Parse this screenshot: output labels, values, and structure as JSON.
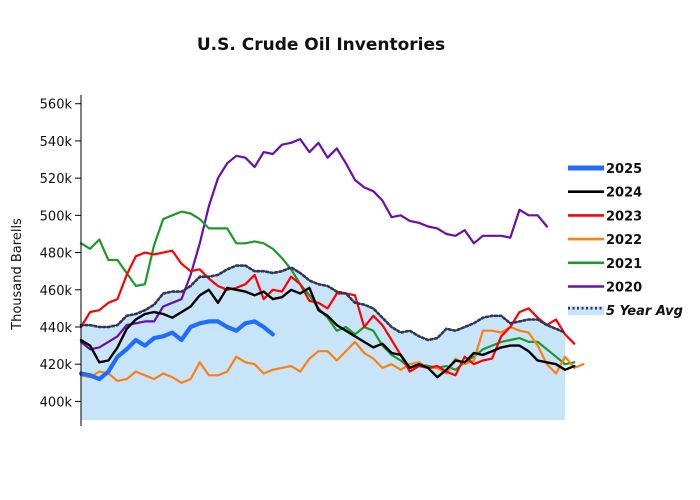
{
  "chart_data": {
    "type": "line",
    "title": "U.S. Crude Oil Inventories",
    "xlabel": "",
    "ylabel": "Thousand Barells",
    "ylim": [
      390,
      562
    ],
    "yticks": [
      400,
      420,
      440,
      460,
      480,
      500,
      520,
      540,
      560
    ],
    "ytick_labels": [
      "400k",
      "420k",
      "440k",
      "460k",
      "480k",
      "500k",
      "520k",
      "540k",
      "560k"
    ],
    "xlim": [
      1,
      53
    ],
    "grid": false,
    "legend_position": "right",
    "colors": {
      "2025": "#1f6cff",
      "2024": "#000000",
      "2023": "#ff0000",
      "2022": "#ff7f0e",
      "2021": "#1a9a2a",
      "2020": "#6a0dad",
      "avg_line": "#333355",
      "avg_fill": "#c8e4f8"
    },
    "series": [
      {
        "name": "2025",
        "values": [
          415,
          414,
          412,
          416,
          424,
          428,
          433,
          430,
          434,
          435,
          437,
          433,
          440,
          442,
          443,
          443,
          440,
          438,
          442,
          443,
          440,
          436
        ]
      },
      {
        "name": "2024",
        "values": [
          433,
          430,
          421,
          422,
          429,
          439,
          444,
          447,
          448,
          447,
          445,
          448,
          451,
          457,
          460,
          453,
          461,
          460,
          459,
          457,
          459,
          455,
          456,
          460,
          458,
          461,
          449,
          446,
          441,
          438,
          435,
          432,
          429,
          431,
          426,
          425,
          418,
          420,
          418,
          413,
          417,
          422,
          421,
          426,
          425,
          427,
          429,
          430,
          430,
          427,
          422,
          421,
          420,
          417,
          419
        ]
      },
      {
        "name": "2023",
        "values": [
          440,
          448,
          449,
          453,
          455,
          468,
          478,
          480,
          479,
          480,
          481,
          474,
          470,
          471,
          466,
          462,
          460,
          461,
          463,
          468,
          455,
          460,
          459,
          467,
          463,
          454,
          453,
          450,
          458,
          458,
          457,
          440,
          446,
          441,
          433,
          425,
          416,
          419,
          418,
          419,
          416,
          414,
          424,
          420,
          422,
          423,
          435,
          440,
          448,
          450,
          445,
          441,
          444,
          436,
          431
        ]
      },
      {
        "name": "2022",
        "values": [
          414,
          413,
          416,
          415,
          411,
          412,
          416,
          414,
          412,
          415,
          413,
          410,
          412,
          421,
          414,
          414,
          416,
          424,
          421,
          420,
          415,
          417,
          418,
          419,
          416,
          423,
          427,
          427,
          422,
          427,
          432,
          426,
          423,
          418,
          420,
          417,
          420,
          421,
          418,
          418,
          415,
          423,
          420,
          422,
          438,
          438,
          437,
          440,
          438,
          437,
          430,
          420,
          415,
          424,
          418,
          420
        ]
      },
      {
        "name": "2021",
        "values": [
          485,
          482,
          487,
          476,
          476,
          469,
          462,
          463,
          484,
          498,
          500,
          502,
          501,
          498,
          493,
          493,
          493,
          485,
          485,
          486,
          485,
          482,
          477,
          471,
          463,
          457,
          450,
          445,
          438,
          440,
          436,
          440,
          438,
          430,
          425,
          422,
          418,
          420,
          419,
          418,
          419,
          417,
          421,
          424,
          428,
          430,
          432,
          433,
          434,
          432,
          432,
          428,
          424,
          420,
          421
        ]
      },
      {
        "name": "2020",
        "values": [
          432,
          428,
          429,
          432,
          435,
          441,
          442,
          443,
          443,
          451,
          453,
          455,
          468,
          485,
          505,
          520,
          528,
          532,
          531,
          526,
          534,
          533,
          538,
          539,
          541,
          534,
          539,
          531,
          536,
          528,
          519,
          515,
          513,
          508,
          499,
          500,
          497,
          496,
          494,
          493,
          490,
          489,
          492,
          485,
          489,
          489,
          489,
          488,
          503,
          500,
          500,
          494
        ]
      },
      {
        "name": "5 Year Avg",
        "values": [
          441,
          441,
          440,
          440,
          441,
          446,
          447,
          449,
          452,
          458,
          459,
          459,
          462,
          467,
          467,
          468,
          471,
          473,
          473,
          470,
          470,
          469,
          470,
          472,
          469,
          465,
          463,
          462,
          459,
          458,
          453,
          452,
          450,
          445,
          440,
          437,
          438,
          435,
          433,
          434,
          439,
          438,
          440,
          442,
          445,
          446,
          446,
          442,
          443,
          444,
          444,
          441,
          439,
          437
        ]
      }
    ]
  }
}
